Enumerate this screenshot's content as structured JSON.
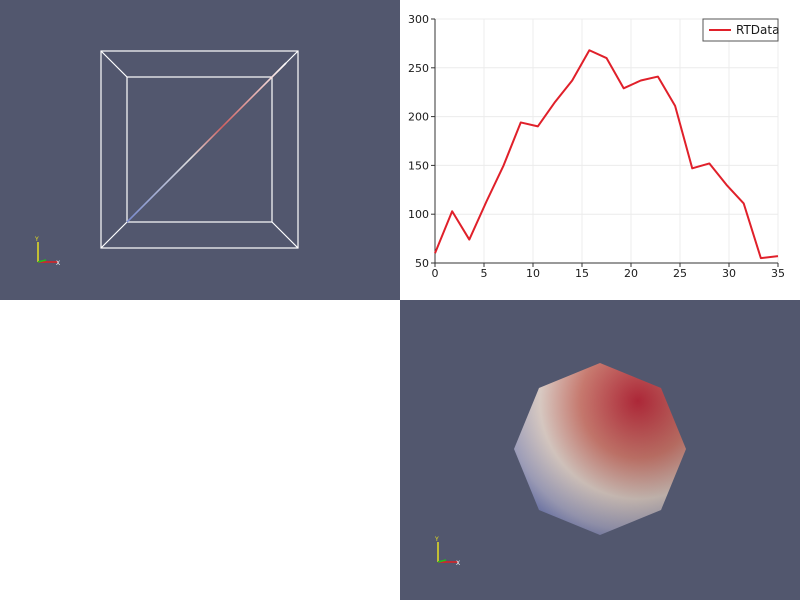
{
  "panes": {
    "top_left": {
      "kind": "3d-render-view",
      "background": "#52576e"
    },
    "top_right": {
      "kind": "line-chart-view",
      "background": "#ffffff"
    },
    "bottom_left": {
      "kind": "empty-view",
      "background": "#ffffff"
    },
    "bottom_right": {
      "kind": "3d-render-view",
      "background": "#52576e"
    }
  },
  "colors": {
    "wireframe": "#ffffff",
    "line_series": "#e0202a",
    "surface_high": "#b2182b",
    "surface_mid": "#d8c8c0",
    "surface_low": "#3b4c9a",
    "axis_x": "#e02020",
    "axis_y": "#e8e020",
    "axis_z": "#20c020"
  },
  "icons": [
    "orientation-axes-icon",
    "orientation-axes-icon"
  ],
  "chart_data": {
    "type": "line",
    "x": [
      0,
      1.75,
      3.5,
      5.25,
      7,
      8.75,
      10.5,
      12.25,
      14,
      15.75,
      17.5,
      19.25,
      21,
      22.75,
      24.5,
      26.25,
      28,
      29.75,
      31.5,
      33.25,
      35
    ],
    "series": [
      {
        "name": "RTData",
        "values": [
          60,
          103,
          74,
          113,
          150,
          194,
          190,
          215,
          237,
          268,
          260,
          229,
          237,
          241,
          211,
          147,
          152,
          130,
          111,
          55,
          57
        ]
      }
    ],
    "xlim": [
      0,
      35
    ],
    "ylim": [
      50,
      300
    ],
    "x_ticks": [
      0,
      5,
      10,
      15,
      20,
      25,
      30,
      35
    ],
    "y_ticks": [
      50,
      100,
      150,
      200,
      250,
      300
    ],
    "grid": true,
    "legend": "top-right"
  }
}
